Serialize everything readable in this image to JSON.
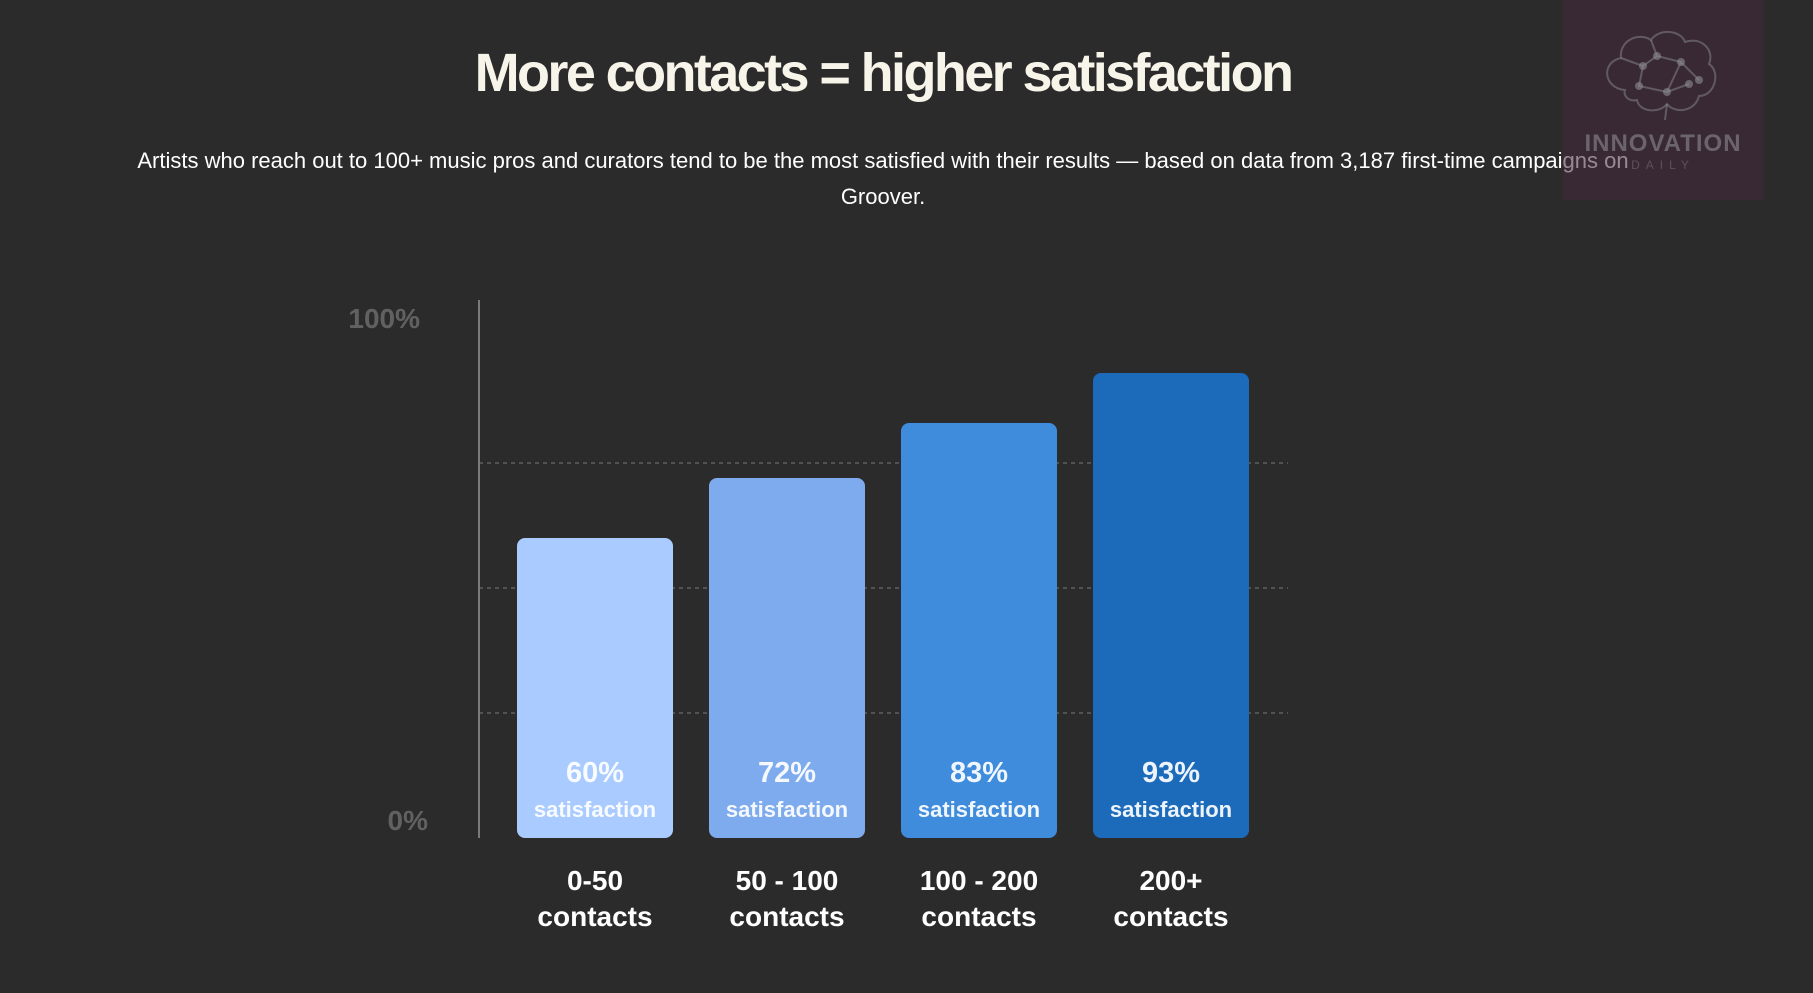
{
  "title": "More contacts = higher satisfaction",
  "subtitle": "Artists who reach out to 100+ music pros and curators tend to be the most satisfied with their results — based on data from 3,187 first-time campaigns on Groover.",
  "logo": {
    "name": "INNOVATION",
    "sub": "DAILY",
    "icon": "brain-network-icon"
  },
  "colors": {
    "background": "#2b2b2b",
    "title": "#f7f4ea",
    "bar_1": "#a9cbff",
    "bar_2": "#7eabed",
    "bar_3": "#3f8bdc",
    "bar_4": "#1c6bbb",
    "axis_label": "#616161",
    "gridline": "#6a6a6a"
  },
  "chart_data": {
    "type": "bar",
    "categories": [
      "0-50 contacts",
      "50 - 100 contacts",
      "100 - 200 contacts",
      "200+ contacts"
    ],
    "category_lines": [
      [
        "0-50",
        "contacts"
      ],
      [
        "50 - 100",
        "contacts"
      ],
      [
        "100 - 200",
        "contacts"
      ],
      [
        "200+",
        "contacts"
      ]
    ],
    "values": [
      60,
      72,
      83,
      93
    ],
    "data_labels": [
      "60%",
      "72%",
      "83%",
      "93%"
    ],
    "data_label_sub": "satisfaction",
    "y_tick_labels": [
      "0%",
      "100%"
    ],
    "ylim": [
      0,
      100
    ],
    "gridlines": [
      25,
      50,
      75
    ],
    "grid": true,
    "legend": "none"
  }
}
